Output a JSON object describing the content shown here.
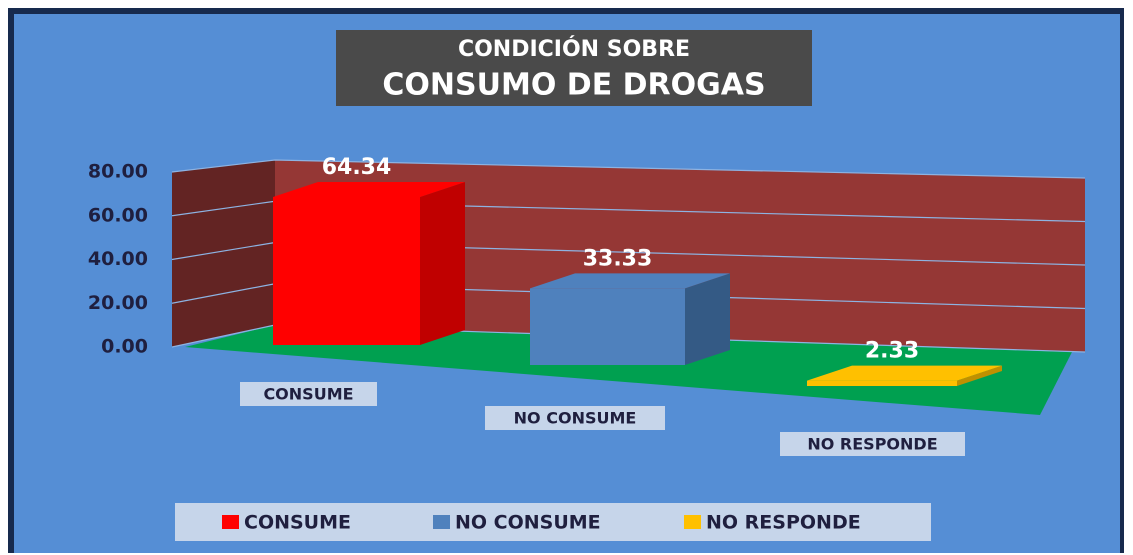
{
  "chart_data": {
    "type": "bar3d",
    "title": [
      "CONDICIÓN SOBRE",
      "CONSUMO DE DROGAS"
    ],
    "categories": [
      "CONSUME",
      "NO CONSUME",
      "NO RESPONDE"
    ],
    "values": [
      64.34,
      33.33,
      2.33
    ],
    "colors": [
      "#ff0000",
      "#4f81bd",
      "#ffc000"
    ],
    "ylim": [
      0,
      80
    ],
    "yticks": [
      {
        "value": 0,
        "label": "0.00"
      },
      {
        "value": 20,
        "label": "20.00"
      },
      {
        "value": 40,
        "label": "40.00"
      },
      {
        "value": 60,
        "label": "60.00"
      },
      {
        "value": 80,
        "label": "80.00"
      }
    ],
    "grid": true,
    "legend": "bottom"
  }
}
